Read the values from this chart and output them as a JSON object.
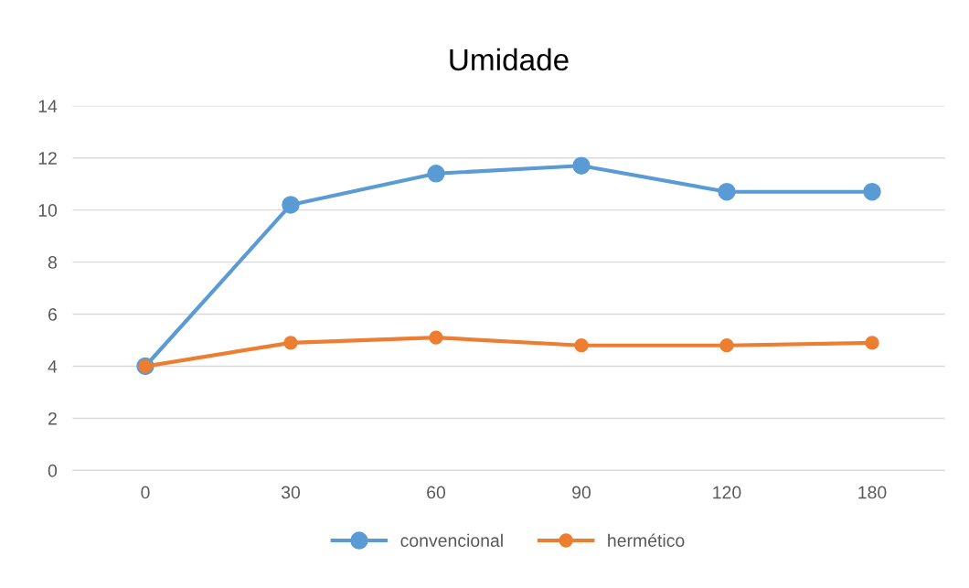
{
  "chart_data": {
    "type": "line",
    "title": "Umidade",
    "categories": [
      "0",
      "30",
      "60",
      "90",
      "120",
      "180"
    ],
    "series": [
      {
        "name": "convencional",
        "color": "#5b9bd5",
        "values": [
          4.0,
          10.2,
          11.4,
          11.7,
          10.7,
          10.7
        ]
      },
      {
        "name": "hermético",
        "color": "#ed7d31",
        "values": [
          4.0,
          4.9,
          5.1,
          4.8,
          4.8,
          4.9
        ]
      }
    ],
    "ylim": [
      0,
      14
    ],
    "yticks": [
      0,
      2,
      4,
      6,
      8,
      10,
      12,
      14
    ],
    "grid": "y",
    "legend": "bottom",
    "marker": "circle",
    "line_style": "solid"
  }
}
